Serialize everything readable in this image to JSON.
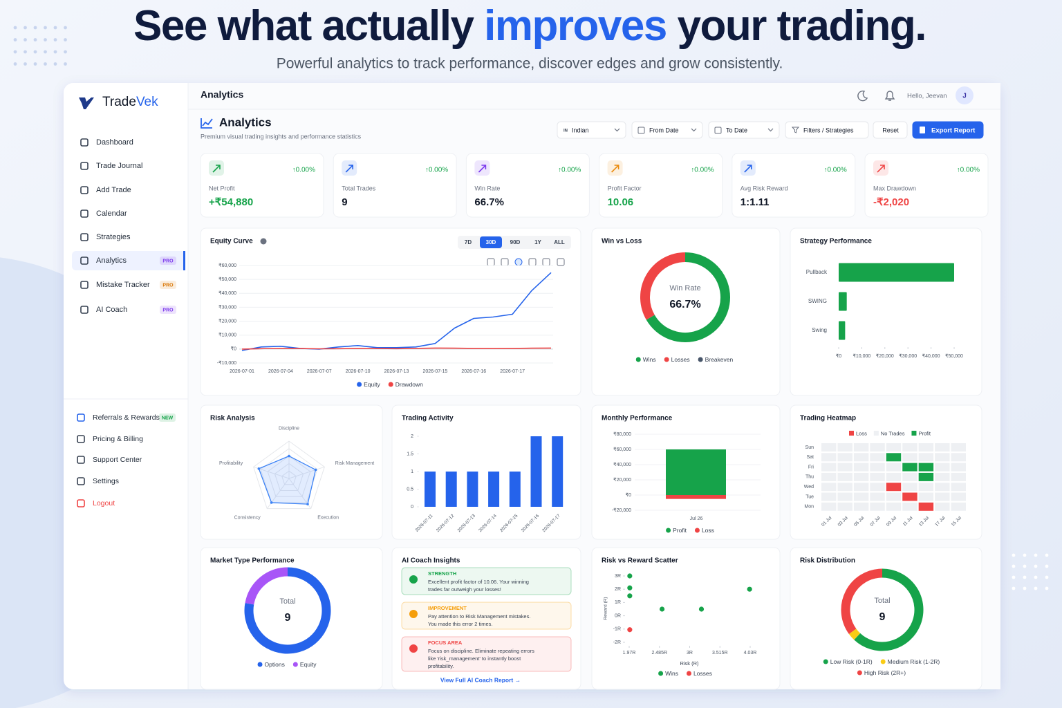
{
  "hero": {
    "title_start": "See what actually ",
    "title_highlight": "improves",
    "title_end": " your trading.",
    "subtitle": "Powerful analytics to track performance, discover edges and grow consistently."
  },
  "sidebar": {
    "brand_start": "Trade",
    "brand_end": "Vek",
    "nav": [
      {
        "label": "Dashboard"
      },
      {
        "label": "Trade Journal"
      },
      {
        "label": "Add Trade"
      },
      {
        "label": "Calendar"
      },
      {
        "label": "Strategies"
      },
      {
        "label": "Analytics",
        "badge": "PRO",
        "badge_color": "#7c3aed",
        "active": true
      },
      {
        "label": "Mistake Tracker",
        "badge": "PRO",
        "badge_color": "#d97706"
      },
      {
        "label": "AI Coach",
        "badge": "PRO",
        "badge_color": "#7c3aed"
      }
    ],
    "footer_nav": [
      {
        "label": "Referrals & Rewards",
        "badge": "NEW",
        "badge_color": "#16a34a"
      },
      {
        "label": "Pricing & Billing"
      },
      {
        "label": "Support Center"
      },
      {
        "label": "Settings"
      },
      {
        "label": "Logout",
        "color": "#ef4444"
      }
    ]
  },
  "topbar": {
    "title": "Analytics",
    "greeting": "Hello, Jeevan",
    "avatar": "J"
  },
  "header": {
    "title": "Analytics",
    "subtitle": "Premium visual trading insights and performance statistics",
    "market_flag": "IN",
    "market": "Indian",
    "from_date": "From Date",
    "to_date": "To Date",
    "filters": "Filters / Strategies",
    "reset": "Reset",
    "export": "Export Report"
  },
  "kpis": [
    {
      "label": "Net Profit",
      "value": "+₹54,880",
      "change": "↑0.00%",
      "color": "#16a34a",
      "icon_color": "#16a34a"
    },
    {
      "label": "Total Trades",
      "value": "9",
      "change": "↑0.00%",
      "color": "#111827",
      "icon_color": "#2563eb"
    },
    {
      "label": "Win Rate",
      "value": "66.7%",
      "change": "↑0.00%",
      "color": "#111827",
      "icon_color": "#7c3aed"
    },
    {
      "label": "Profit Factor",
      "value": "10.06",
      "change": "↑0.00%",
      "color": "#16a34a",
      "icon_color": "#ea8a0c"
    },
    {
      "label": "Avg Risk Reward",
      "value": "1:1.11",
      "change": "↑0.00%",
      "color": "#111827",
      "icon_color": "#2563eb"
    },
    {
      "label": "Max Drawdown",
      "value": "-₹2,020",
      "change": "↑0.00%",
      "color": "#ef4444",
      "icon_color": "#ef4444"
    }
  ],
  "charts": {
    "equity_curve": {
      "type": "line",
      "title": "Equity Curve",
      "ranges": [
        "7D",
        "30D",
        "90D",
        "1Y",
        "ALL"
      ],
      "active_range": 1,
      "categories": [
        "2026-07-01",
        null,
        "2026-07-04",
        null,
        "2026-07-07",
        null,
        "2026-07-10",
        null,
        "2026-07-13",
        null,
        "2026-07-15",
        null,
        "2026-07-16",
        null,
        "2026-07-17",
        null,
        null
      ],
      "series": [
        {
          "name": "Equity",
          "color": "#2563eb",
          "values": [
            -1000,
            1500,
            2000,
            500,
            0,
            1500,
            2500,
            1000,
            1000,
            1500,
            4000,
            15000,
            22000,
            23000,
            25000,
            42000,
            54880
          ]
        },
        {
          "name": "Drawdown",
          "color": "#ef4444",
          "values": [
            0,
            300,
            500,
            400,
            200,
            300,
            500,
            400,
            300,
            500,
            700,
            600,
            500,
            400,
            500,
            600,
            700
          ]
        }
      ],
      "ylim": [
        -10000,
        60000
      ],
      "yticks": [
        {
          "value": 60000,
          "label": "₹60,000"
        },
        {
          "value": 50000,
          "label": "₹50,000"
        },
        {
          "value": 40000,
          "label": "₹40,000"
        },
        {
          "value": 30000,
          "label": "₹30,000"
        },
        {
          "value": 20000,
          "label": "₹20,000"
        },
        {
          "value": 10000,
          "label": "₹10,000"
        },
        {
          "value": 0,
          "label": "₹0"
        },
        {
          "value": -10000,
          "label": "-₹10,000"
        }
      ],
      "grid": true
    },
    "win_loss": {
      "type": "donut",
      "title": "Win vs Loss",
      "center_label": "Win Rate",
      "center_value": "66.7%",
      "categories": [
        "Wins",
        "Losses",
        "Breakeven"
      ],
      "values": [
        6,
        3,
        0
      ],
      "colors": [
        "#16a34a",
        "#ef4444",
        "#475569"
      ]
    },
    "strategy": {
      "type": "hbar",
      "title": "Strategy Performance",
      "categories": [
        "Pullback",
        "SWING",
        "Swing"
      ],
      "values": [
        50000,
        3500,
        2800
      ],
      "color": "#16a34a",
      "xlim": [
        0,
        50000
      ],
      "xticks": [
        {
          "value": 0,
          "label": "₹0"
        },
        {
          "value": 10000,
          "label": "₹10,000"
        },
        {
          "value": 20000,
          "label": "₹20,000"
        },
        {
          "value": 30000,
          "label": "₹30,000"
        },
        {
          "value": 40000,
          "label": "₹40,000"
        },
        {
          "value": 50000,
          "label": "₹50,000"
        }
      ]
    },
    "risk_analysis": {
      "type": "radar",
      "title": "Risk Analysis",
      "categories": [
        "Discipline",
        "Risk Management",
        "Execution",
        "Consistency",
        "Profitability"
      ],
      "values": [
        60,
        75,
        85,
        80,
        85
      ],
      "rlim": [
        0,
        100
      ],
      "color": "#3b82f6"
    },
    "trading_activity": {
      "type": "bar",
      "title": "Trading Activity",
      "categories": [
        "2026-07-11",
        "2026-07-12",
        "2026-07-13",
        "2026-07-14",
        "2026-07-15",
        "2026-07-16",
        "2026-07-17"
      ],
      "values": [
        1,
        1,
        1,
        1,
        1,
        2,
        2
      ],
      "color": "#2563eb",
      "ylim": [
        0,
        2
      ],
      "yticks": [
        0,
        0.5,
        1,
        1.5,
        2
      ]
    },
    "monthly": {
      "type": "stacked_bar",
      "title": "Monthly Performance",
      "categories": [
        "Jul 26"
      ],
      "series": [
        {
          "name": "Profit",
          "color": "#16a34a",
          "values": [
            60000
          ]
        },
        {
          "name": "Loss",
          "color": "#ef4444",
          "values": [
            -5120
          ]
        }
      ],
      "ylim": [
        -20000,
        80000
      ],
      "yticks": [
        {
          "value": 80000,
          "label": "₹80,000"
        },
        {
          "value": 60000,
          "label": "₹60,000"
        },
        {
          "value": 40000,
          "label": "₹40,000"
        },
        {
          "value": 20000,
          "label": "₹20,000"
        },
        {
          "value": 0,
          "label": "₹0"
        },
        {
          "value": -20000,
          "label": "-₹20,000"
        }
      ]
    },
    "heatmap": {
      "type": "heatmap",
      "title": "Trading Heatmap",
      "legend": [
        {
          "name": "Loss",
          "color": "#ef4444"
        },
        {
          "name": "No Trades",
          "color": "#eef0f3"
        },
        {
          "name": "Profit",
          "color": "#16a34a"
        }
      ],
      "rows": [
        "Sun",
        "Sat",
        "Fri",
        "Thu",
        "Wed",
        "Tue",
        "Mon"
      ],
      "columns": [
        "01 Jul",
        "03 Jul",
        "05 Jul",
        "07 Jul",
        "09 Jul",
        "11 Jul",
        "13 Jul",
        "17 Jul",
        "15 Jul"
      ],
      "values": [
        [
          0,
          0,
          0,
          0,
          0,
          0,
          0,
          0,
          0
        ],
        [
          0,
          0,
          0,
          0,
          1,
          0,
          0,
          0,
          0
        ],
        [
          0,
          0,
          0,
          0,
          0,
          1,
          1,
          0,
          0
        ],
        [
          0,
          0,
          0,
          0,
          0,
          0,
          1,
          0,
          0
        ],
        [
          0,
          0,
          0,
          0,
          -1,
          0,
          0,
          0,
          0
        ],
        [
          0,
          0,
          0,
          0,
          0,
          -1,
          0,
          0,
          0
        ],
        [
          0,
          0,
          0,
          0,
          0,
          0,
          -1,
          0,
          0
        ]
      ]
    },
    "market_type": {
      "type": "donut",
      "title": "Market Type Performance",
      "center_label": "Total",
      "center_value": "9",
      "categories": [
        "Options",
        "Equity"
      ],
      "values": [
        7,
        2
      ],
      "colors": [
        "#2563eb",
        "#a855f7"
      ]
    },
    "ai_insights": {
      "type": "insights",
      "title": "AI Coach Insights",
      "items": [
        {
          "kind": "STRENGTH",
          "color": "#16a34a",
          "lines": [
            "Excellent profit factor of 10.06. Your winning",
            "trades far outweigh your losses!"
          ]
        },
        {
          "kind": "IMPROVEMENT",
          "color": "#f59e0b",
          "lines": [
            "Pay attention to Risk Management mistakes.",
            "You made this error 2 times."
          ]
        },
        {
          "kind": "FOCUS AREA",
          "color": "#ef4444",
          "lines": [
            "Focus on discipline. Eliminate repeating errors",
            "like 'risk_management' to instantly boost",
            "profitability."
          ]
        }
      ],
      "link": "View Full AI Coach Report →"
    },
    "scatter": {
      "type": "scatter",
      "title": "Risk vs Reward Scatter",
      "x_label": "Risk (R)",
      "y_label": "Reward (R)",
      "series": [
        {
          "name": "Wins",
          "color": "#16a34a",
          "x": [
            1.98,
            1.98,
            1.98,
            2.53,
            3.2,
            4.02
          ],
          "y": [
            3,
            2.1,
            1.5,
            0.5,
            0.5,
            2
          ]
        },
        {
          "name": "Losses",
          "color": "#ef4444",
          "x": [
            1.98
          ],
          "y": [
            -1.05
          ]
        }
      ],
      "xlim": [
        1.97,
        4.03
      ],
      "xticks": [
        {
          "value": 1.97,
          "label": "1.97R"
        },
        {
          "value": 2.485,
          "label": "2.485R"
        },
        {
          "value": 3,
          "label": "3R"
        },
        {
          "value": 3.515,
          "label": "3.515R"
        },
        {
          "value": 4.03,
          "label": "4.03R"
        }
      ],
      "ylim": [
        -2,
        3
      ],
      "yticks": [
        {
          "value": 3,
          "label": "3R"
        },
        {
          "value": 2,
          "label": "2R"
        },
        {
          "value": 1,
          "label": "1R"
        },
        {
          "value": 0,
          "label": "0R"
        },
        {
          "value": -1,
          "label": "-1R"
        },
        {
          "value": -2,
          "label": "-2R"
        }
      ]
    },
    "risk_distribution": {
      "type": "donut",
      "title": "Risk Distribution",
      "center_label": "Total",
      "center_value": "9",
      "categories": [
        "Low Risk (0-1R)",
        "Medium Risk (1-2R)",
        "High Risk (2R+)"
      ],
      "values": [
        62,
        3,
        35
      ],
      "colors": [
        "#16a34a",
        "#facc15",
        "#ef4444"
      ]
    }
  }
}
